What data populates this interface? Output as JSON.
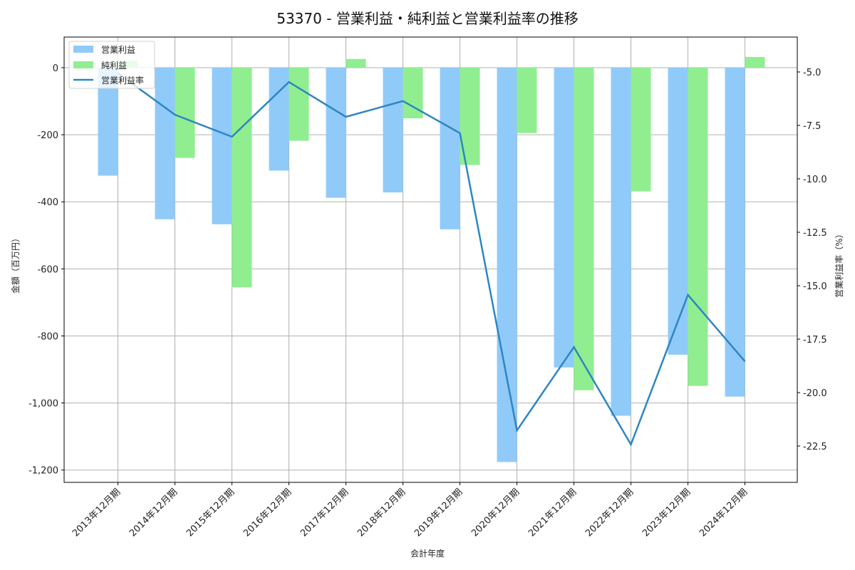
{
  "chart_data": {
    "type": "bar+line",
    "title": "53370 - 営業利益・純利益と営業利益率の推移",
    "xlabel": "会計年度",
    "ylabel": "金額（百万円）",
    "ylabel_right": "営業利益率（%）",
    "categories": [
      "2013年12月期",
      "2014年12月期",
      "2015年12月期",
      "2016年12月期",
      "2017年12月期",
      "2018年12月期",
      "2019年12月期",
      "2020年12月期",
      "2021年12月期",
      "2022年12月期",
      "2023年12月期",
      "2024年12月期"
    ],
    "series": [
      {
        "name": "営業利益",
        "type": "bar",
        "axis": "left",
        "color": "#90caf9",
        "values": [
          -322,
          -452,
          -467,
          -307,
          -388,
          -372,
          -482,
          -1176,
          -894,
          -1038,
          -856,
          -981
        ]
      },
      {
        "name": "純利益",
        "type": "bar",
        "axis": "left",
        "color": "#90ee90",
        "values": [
          21,
          -269,
          -655,
          -218,
          26,
          -151,
          -290,
          -195,
          -962,
          -369,
          -949,
          32
        ]
      },
      {
        "name": "営業利益率",
        "type": "line",
        "axis": "right",
        "color": "#2e86c1",
        "values": [
          -5.06,
          -7.0,
          -8.03,
          -5.47,
          -7.1,
          -6.36,
          -7.86,
          -21.77,
          -17.87,
          -22.43,
          -15.43,
          -18.54
        ]
      }
    ],
    "ylim": [
      -1240,
      90
    ],
    "yticks": [
      0,
      -200,
      -400,
      -600,
      -800,
      -1000,
      -1200
    ],
    "ytick_labels": [
      "0",
      "-200",
      "-400",
      "-600",
      "-800",
      "-1,000",
      "-1,200"
    ],
    "ylim_right": [
      -24.3,
      -3.3
    ],
    "yticks_right": [
      -5.0,
      -7.5,
      -10.0,
      -12.5,
      -15.0,
      -17.5,
      -20.0,
      -22.5
    ],
    "ytick_labels_right": [
      "-5.0",
      "-7.5",
      "-10.0",
      "-12.5",
      "-15.0",
      "-17.5",
      "-20.0",
      "-22.5"
    ],
    "grid": true,
    "legend_position": "upper left"
  }
}
